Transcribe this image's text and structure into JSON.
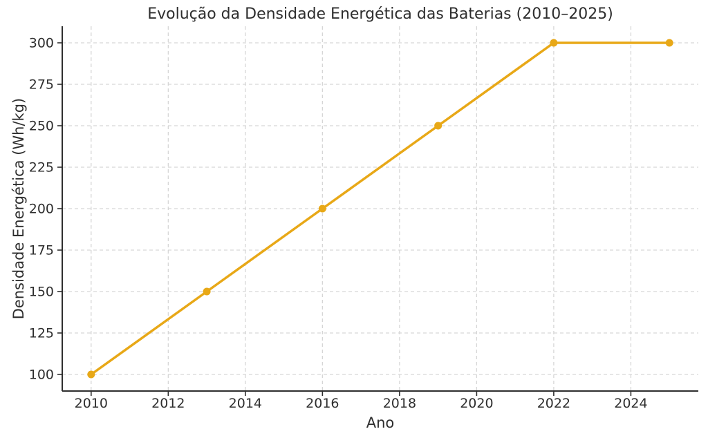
{
  "chart_data": {
    "type": "line",
    "title": "Evolução da Densidade Energética das Baterias (2010–2025)",
    "xlabel": "Ano",
    "ylabel": "Densidade Energética (Wh/kg)",
    "x": [
      2010,
      2013,
      2016,
      2019,
      2022,
      2025
    ],
    "y": [
      100,
      150,
      200,
      250,
      300,
      300
    ],
    "xticks": [
      2010,
      2012,
      2014,
      2016,
      2018,
      2020,
      2022,
      2024
    ],
    "yticks": [
      100,
      125,
      150,
      175,
      200,
      225,
      250,
      275,
      300
    ],
    "xlim": [
      2009.25,
      2025.75
    ],
    "ylim": [
      90,
      310
    ],
    "grid": true,
    "grid_style": "dashed",
    "legend": false,
    "line_color": "#E8A817",
    "marker": "circle",
    "grid_color": "#d6d6d6",
    "axis_color": "#2e2e2e",
    "text_color": "#2e2e2e",
    "background_color": "#ffffff"
  }
}
